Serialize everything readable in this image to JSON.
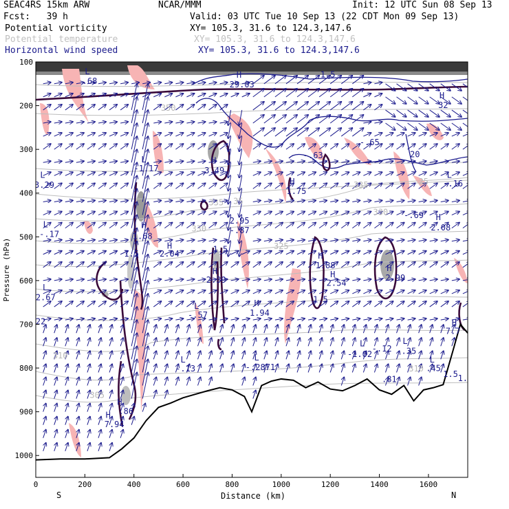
{
  "header": {
    "model": "SEAC4RS 15km ARW",
    "org": "NCAR/MMM",
    "init": "Init: 12 UTC Sun 08 Sep 13",
    "fcst": "Fcst:   39 h",
    "valid": "Valid: 03 UTC Tue 10 Sep 13 (22 CDT Mon 09 Sep 13)",
    "fields": [
      {
        "name": "Potential vorticity",
        "xy": "XY= 105.3, 31.6 to 124.3,147.6",
        "color": "#000000"
      },
      {
        "name": "Potential temperature",
        "xy": "XY= 105.3, 31.6 to 124.3,147.6",
        "color": "#c8c8c8"
      },
      {
        "name": "Horizontal wind speed",
        "xy": "XY= 105.3, 31.6 to 124.3,147.6",
        "color": "#1a1a8c"
      }
    ]
  },
  "chart_data": {
    "type": "cross-section",
    "xlabel": "Distance (km)",
    "ylabel": "Pressure (hPa)",
    "xlim": [
      0,
      1760
    ],
    "ylim": [
      1050,
      100
    ],
    "x_ticks": [
      0,
      200,
      400,
      600,
      800,
      1000,
      1200,
      1400,
      1600
    ],
    "y_ticks": [
      100,
      200,
      300,
      400,
      500,
      600,
      700,
      800,
      900,
      1000
    ],
    "x_end_labels": {
      "left": "S",
      "right": "N"
    },
    "terrain": [
      [
        0,
        1010
      ],
      [
        100,
        1008
      ],
      [
        200,
        1008
      ],
      [
        300,
        1005
      ],
      [
        350,
        985
      ],
      [
        400,
        960
      ],
      [
        450,
        920
      ],
      [
        500,
        890
      ],
      [
        550,
        880
      ],
      [
        600,
        868
      ],
      [
        650,
        860
      ],
      [
        700,
        852
      ],
      [
        750,
        845
      ],
      [
        800,
        850
      ],
      [
        850,
        865
      ],
      [
        880,
        900
      ],
      [
        920,
        840
      ],
      [
        960,
        830
      ],
      [
        1000,
        825
      ],
      [
        1050,
        828
      ],
      [
        1100,
        845
      ],
      [
        1150,
        832
      ],
      [
        1200,
        848
      ],
      [
        1250,
        852
      ],
      [
        1300,
        840
      ],
      [
        1350,
        825
      ],
      [
        1400,
        850
      ],
      [
        1450,
        860
      ],
      [
        1500,
        840
      ],
      [
        1540,
        875
      ],
      [
        1580,
        850
      ],
      [
        1620,
        845
      ],
      [
        1660,
        838
      ],
      [
        1700,
        760
      ],
      [
        1730,
        700
      ],
      [
        1760,
        720
      ]
    ],
    "pressure_labels": [
      {
        "text": "L",
        "x": 210,
        "p": 128
      },
      {
        "text": ".68",
        "x": 220,
        "p": 150
      },
      {
        "text": "L",
        "x": 28,
        "p": 365
      },
      {
        "text": "3.29",
        "x": 35,
        "p": 388
      },
      {
        "text": "L",
        "x": 40,
        "p": 478
      },
      {
        "text": "-.17",
        "x": 55,
        "p": 500
      },
      {
        "text": "L",
        "x": 38,
        "p": 622
      },
      {
        "text": "2.67",
        "x": 40,
        "p": 645
      },
      {
        "text": "22",
        "x": 20,
        "p": 700
      },
      {
        "text": "L",
        "x": 440,
        "p": 330
      },
      {
        "text": "-1.17",
        "x": 450,
        "p": 350
      },
      {
        "text": "H",
        "x": 440,
        "p": 480
      },
      {
        "text": "1.68",
        "x": 435,
        "p": 505
      },
      {
        "text": "1.5",
        "x": 390,
        "p": 545
      },
      {
        "text": "H",
        "x": 545,
        "p": 527
      },
      {
        "text": "2.04",
        "x": 545,
        "p": 545
      },
      {
        "text": "H",
        "x": 725,
        "p": 332
      },
      {
        "text": "3.49",
        "x": 728,
        "p": 355
      },
      {
        "text": "2.95",
        "x": 830,
        "p": 470
      },
      {
        "text": "-.87",
        "x": 830,
        "p": 492
      },
      {
        "text": "1.5",
        "x": 752,
        "p": 535
      },
      {
        "text": "H",
        "x": 730,
        "p": 585
      },
      {
        "text": "2.39",
        "x": 735,
        "p": 605
      },
      {
        "text": "L",
        "x": 655,
        "p": 665
      },
      {
        "text": "-.57",
        "x": 660,
        "p": 685
      },
      {
        "text": "H",
        "x": 900,
        "p": 658
      },
      {
        "text": "1.94",
        "x": 912,
        "p": 680
      },
      {
        "text": "H",
        "x": 828,
        "p": 136
      },
      {
        "text": "29.03",
        "x": 840,
        "p": 158
      },
      {
        "text": "1.5",
        "x": 1190,
        "p": 135
      },
      {
        "text": "H",
        "x": 1045,
        "p": 380
      },
      {
        "text": "1.75",
        "x": 1062,
        "p": 402
      },
      {
        "text": "-.63",
        "x": 1130,
        "p": 320
      },
      {
        "text": "-.65",
        "x": 1360,
        "p": 290
      },
      {
        "text": "H",
        "x": 1160,
        "p": 550
      },
      {
        "text": "1.88",
        "x": 1180,
        "p": 572
      },
      {
        "text": "H",
        "x": 1210,
        "p": 592
      },
      {
        "text": "2.54",
        "x": 1225,
        "p": 612
      },
      {
        "text": "1.5",
        "x": 1160,
        "p": 650
      },
      {
        "text": "H",
        "x": 1440,
        "p": 578
      },
      {
        "text": "-2.99",
        "x": 1455,
        "p": 600
      },
      {
        "text": "20",
        "x": 1545,
        "p": 318
      },
      {
        "text": "-.69",
        "x": 1540,
        "p": 457
      },
      {
        "text": "H",
        "x": 1655,
        "p": 183
      },
      {
        "text": "32",
        "x": 1660,
        "p": 205
      },
      {
        "text": "L",
        "x": 1685,
        "p": 365
      },
      {
        "text": "-.16",
        "x": 1700,
        "p": 385
      },
      {
        "text": "H",
        "x": 1640,
        "p": 462
      },
      {
        "text": "2.08",
        "x": 1650,
        "p": 485
      },
      {
        "text": "L",
        "x": 1505,
        "p": 745
      },
      {
        "text": "-.12",
        "x": 1410,
        "p": 762
      },
      {
        "text": "-.35",
        "x": 1510,
        "p": 768
      },
      {
        "text": "L",
        "x": 1330,
        "p": 750
      },
      {
        "text": "-1.02",
        "x": 1320,
        "p": 775
      },
      {
        "text": "L",
        "x": 900,
        "p": 783
      },
      {
        "text": "-.2871",
        "x": 915,
        "p": 805
      },
      {
        "text": "L",
        "x": 600,
        "p": 787
      },
      {
        "text": "-.13",
        "x": 610,
        "p": 808
      },
      {
        "text": "L",
        "x": 1615,
        "p": 787
      },
      {
        "text": ".45",
        "x": 1620,
        "p": 807
      },
      {
        "text": "1.5",
        "x": 1690,
        "p": 820
      },
      {
        "text": ".81",
        "x": 1440,
        "p": 832
      },
      {
        "text": "H",
        "x": 1705,
        "p": 703
      },
      {
        "text": "7.7",
        "x": 1700,
        "p": 722
      },
      {
        "text": "H",
        "x": 342,
        "p": 884
      },
      {
        "text": ".86",
        "x": 368,
        "p": 905
      },
      {
        "text": "H",
        "x": 295,
        "p": 914
      },
      {
        "text": "7.94",
        "x": 320,
        "p": 935
      },
      {
        "text": "1.5",
        "x": 1750,
        "p": 830
      }
    ],
    "theta_labels": [
      {
        "text": "350",
        "x": 540,
        "p": 212
      },
      {
        "text": "335",
        "x": 735,
        "p": 428
      },
      {
        "text": "330",
        "x": 665,
        "p": 488
      },
      {
        "text": "335",
        "x": 1325,
        "p": 388
      },
      {
        "text": "330",
        "x": 1405,
        "p": 450
      },
      {
        "text": "325",
        "x": 1000,
        "p": 528
      },
      {
        "text": "310",
        "x": 100,
        "p": 778
      },
      {
        "text": "305",
        "x": 250,
        "p": 868
      },
      {
        "text": "310",
        "x": 1550,
        "p": 808
      },
      {
        "text": "25",
        "x": 1580,
        "p": 380
      },
      {
        "text": "35",
        "x": 825,
        "p": 425
      }
    ]
  }
}
